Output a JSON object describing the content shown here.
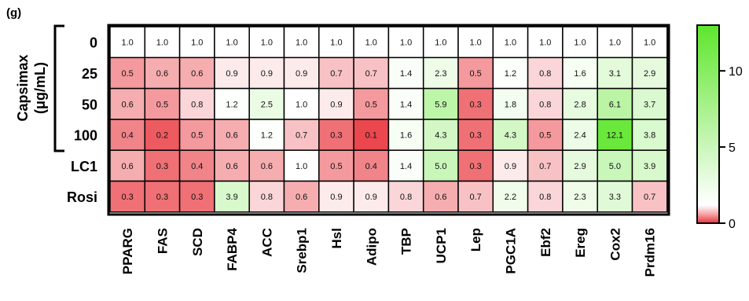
{
  "panel_label": "(g)",
  "group": {
    "label_line1": "Capsimax",
    "label_line2": "(μg/mL)"
  },
  "chart_data": {
    "type": "heatmap",
    "columns": [
      "PPARG",
      "FAS",
      "SCD",
      "FABP4",
      "ACC",
      "Srebp1",
      "Hsl",
      "Adipo",
      "TBP",
      "UCP1",
      "Lep",
      "PGC1A",
      "Ebf2",
      "Ereg",
      "Cox2",
      "Prdm16"
    ],
    "rows": [
      "0",
      "25",
      "50",
      "100",
      "LC1",
      "Rosi"
    ],
    "values": [
      [
        1.0,
        1.0,
        1.0,
        1.0,
        1.0,
        1.0,
        1.0,
        1.0,
        1.0,
        1.0,
        1.0,
        1.0,
        1.0,
        1.0,
        1.0,
        1.0
      ],
      [
        0.5,
        0.6,
        0.6,
        0.9,
        0.9,
        0.9,
        0.7,
        0.7,
        1.4,
        2.3,
        0.5,
        1.2,
        0.8,
        1.6,
        3.1,
        2.9
      ],
      [
        0.6,
        0.5,
        0.8,
        1.2,
        2.5,
        1.0,
        0.9,
        0.5,
        1.4,
        5.9,
        0.3,
        1.8,
        0.8,
        2.8,
        6.1,
        3.7
      ],
      [
        0.4,
        0.2,
        0.5,
        0.6,
        1.2,
        0.7,
        0.3,
        0.1,
        1.6,
        4.3,
        0.3,
        4.3,
        0.5,
        2.4,
        12.1,
        3.8
      ],
      [
        0.6,
        0.3,
        0.4,
        0.6,
        0.6,
        1.0,
        0.5,
        0.4,
        1.4,
        5.0,
        0.3,
        0.9,
        0.7,
        2.9,
        5.0,
        3.9
      ],
      [
        0.3,
        0.3,
        0.3,
        3.9,
        0.8,
        0.6,
        0.9,
        0.9,
        0.8,
        0.6,
        0.7,
        2.2,
        0.8,
        2.3,
        3.3,
        0.7
      ]
    ],
    "grouped_rows": [
      "0",
      "25",
      "50",
      "100"
    ],
    "colorbar": {
      "range": [
        0,
        13
      ],
      "ticks": [
        0,
        5,
        10
      ],
      "tick_labels": [
        "0",
        "5",
        "10"
      ],
      "colors": {
        "low": "#e8323a",
        "mid": "#ffffff",
        "high": "#5ee62c"
      }
    }
  }
}
